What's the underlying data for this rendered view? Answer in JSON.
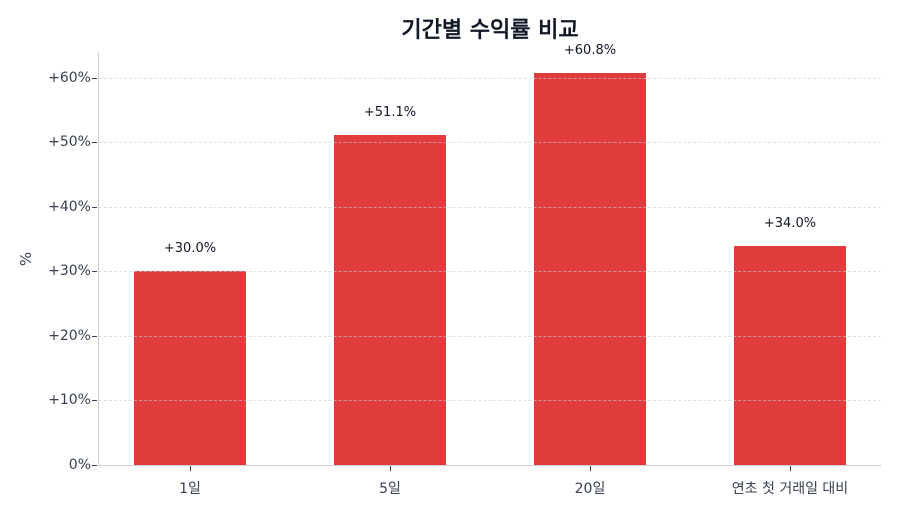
{
  "chart_data": {
    "type": "bar",
    "title": "기간별 수익률 비교",
    "xlabel": "",
    "ylabel": "%",
    "categories": [
      "1일",
      "5일",
      "20일",
      "연초 첫 거래일 대비"
    ],
    "values": [
      30.0,
      51.1,
      60.8,
      34.0
    ],
    "data_labels": [
      "+30.0%",
      "+51.1%",
      "+60.8%",
      "+34.0%"
    ],
    "ylim": [
      0,
      64
    ],
    "yticks": [
      0,
      10,
      20,
      30,
      40,
      50,
      60
    ],
    "ytick_labels": [
      "0%",
      "+10%",
      "+20%",
      "+30%",
      "+40%",
      "+50%",
      "+60%"
    ],
    "grid": "y-dashed",
    "legend": null,
    "bar_color": "#e03c3c"
  },
  "title": "기간별 수익률 비교",
  "y_axis_title": "%",
  "yticks": [
    {
      "value": 0,
      "label": "0%"
    },
    {
      "value": 10,
      "label": "+10%"
    },
    {
      "value": 20,
      "label": "+20%"
    },
    {
      "value": 30,
      "label": "+30%"
    },
    {
      "value": 40,
      "label": "+40%"
    },
    {
      "value": 50,
      "label": "+50%"
    },
    {
      "value": 60,
      "label": "+60%"
    }
  ],
  "bars": [
    {
      "category": "1일",
      "value": 30.0,
      "label": "+30.0%"
    },
    {
      "category": "5일",
      "value": 51.1,
      "label": "+51.1%"
    },
    {
      "category": "20일",
      "value": 60.8,
      "label": "+60.8%"
    },
    {
      "category": "연초 첫 거래일 대비",
      "value": 34.0,
      "label": "+34.0%"
    }
  ]
}
